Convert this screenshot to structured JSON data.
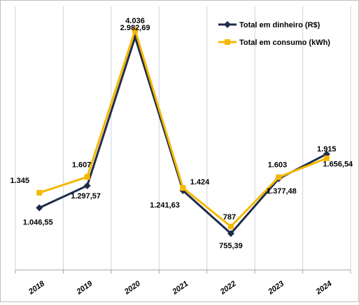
{
  "chart_data": {
    "type": "line",
    "categories": [
      "2018",
      "2019",
      "2020",
      "2021",
      "2022",
      "2023",
      "2024"
    ],
    "series": [
      {
        "name": "Total em dinheiro (R$)",
        "color": "#1f2d4a",
        "marker": "diamond",
        "values": [
          1046.55,
          1297.57,
          2982.69,
          1241.63,
          755.39,
          1377.48,
          1656.54
        ],
        "labels": [
          "1.046,55",
          "1.297,57",
          "2.982,69",
          "1.241,63",
          "755,39",
          "1.377,48",
          "1.656,54"
        ]
      },
      {
        "name": "Total em consumo (kWh)",
        "color": "#f5b800",
        "marker": "square",
        "values": [
          1345,
          1607,
          4036,
          1424,
          787,
          1603,
          1915
        ],
        "labels": [
          "1.345",
          "1.607",
          "4.036",
          "1.424",
          "787",
          "1.603",
          "1.915"
        ]
      }
    ],
    "grid": "vertical",
    "legend": "top-right"
  }
}
